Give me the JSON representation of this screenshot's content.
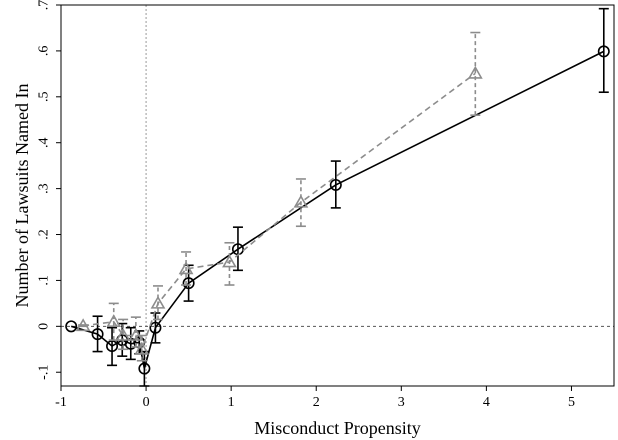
{
  "chart_data": {
    "type": "line",
    "title": "",
    "xlabel": "Misconduct Propensity",
    "ylabel": "Number of Lawsuits Named In",
    "xlim": [
      -1.0,
      5.5
    ],
    "ylim": [
      -0.13,
      0.7
    ],
    "x_ticks": [
      -1,
      0,
      1,
      2,
      3,
      4,
      5
    ],
    "x_tick_labels": [
      "-1",
      "0",
      "1",
      "2",
      "3",
      "4",
      "5"
    ],
    "y_ticks": [
      -0.1,
      0,
      0.1,
      0.2,
      0.3,
      0.4,
      0.5,
      0.6,
      0.7
    ],
    "y_tick_labels": [
      "-.1",
      "0",
      ".1",
      ".2",
      ".3",
      ".4",
      ".5",
      ".6",
      ".7"
    ],
    "reference_lines": {
      "x": 0,
      "y": 0,
      "style": "dotted"
    },
    "grid": false,
    "legend": "none",
    "series": [
      {
        "marker": "circle",
        "line_style": "solid",
        "color": "#000000",
        "points": [
          {
            "x": -0.88,
            "y": 0.0,
            "lo": 0.0,
            "hi": 0.0
          },
          {
            "x": -0.57,
            "y": -0.017,
            "lo": -0.055,
            "hi": 0.022
          },
          {
            "x": -0.4,
            "y": -0.043,
            "lo": -0.085,
            "hi": -0.003
          },
          {
            "x": -0.28,
            "y": -0.03,
            "lo": -0.065,
            "hi": 0.006
          },
          {
            "x": -0.18,
            "y": -0.038,
            "lo": -0.072,
            "hi": -0.003
          },
          {
            "x": -0.08,
            "y": -0.035,
            "lo": -0.06,
            "hi": -0.01
          },
          {
            "x": -0.02,
            "y": -0.092,
            "lo": -0.13,
            "hi": -0.055
          },
          {
            "x": 0.11,
            "y": -0.003,
            "lo": -0.036,
            "hi": 0.029
          },
          {
            "x": 0.5,
            "y": 0.094,
            "lo": 0.055,
            "hi": 0.133
          },
          {
            "x": 1.08,
            "y": 0.168,
            "lo": 0.122,
            "hi": 0.216
          },
          {
            "x": 2.23,
            "y": 0.308,
            "lo": 0.258,
            "hi": 0.36
          },
          {
            "x": 5.38,
            "y": 0.599,
            "lo": 0.51,
            "hi": 0.692
          }
        ]
      },
      {
        "marker": "triangle",
        "line_style": "dashed",
        "color": "#8c8c8c",
        "points": [
          {
            "x": -0.74,
            "y": 0.001,
            "lo": 0.0,
            "hi": 0.003
          },
          {
            "x": -0.38,
            "y": 0.01,
            "lo": -0.03,
            "hi": 0.05
          },
          {
            "x": -0.27,
            "y": -0.02,
            "lo": -0.05,
            "hi": 0.015
          },
          {
            "x": -0.12,
            "y": -0.02,
            "lo": -0.045,
            "hi": 0.02
          },
          {
            "x": -0.05,
            "y": -0.05,
            "lo": -0.075,
            "hi": -0.02
          },
          {
            "x": 0.14,
            "y": 0.05,
            "lo": 0.015,
            "hi": 0.088
          },
          {
            "x": 0.47,
            "y": 0.125,
            "lo": 0.09,
            "hi": 0.162
          },
          {
            "x": 0.98,
            "y": 0.14,
            "lo": 0.09,
            "hi": 0.182
          },
          {
            "x": 1.82,
            "y": 0.27,
            "lo": 0.218,
            "hi": 0.321
          },
          {
            "x": 3.87,
            "y": 0.551,
            "lo": 0.46,
            "hi": 0.64
          }
        ]
      }
    ]
  }
}
